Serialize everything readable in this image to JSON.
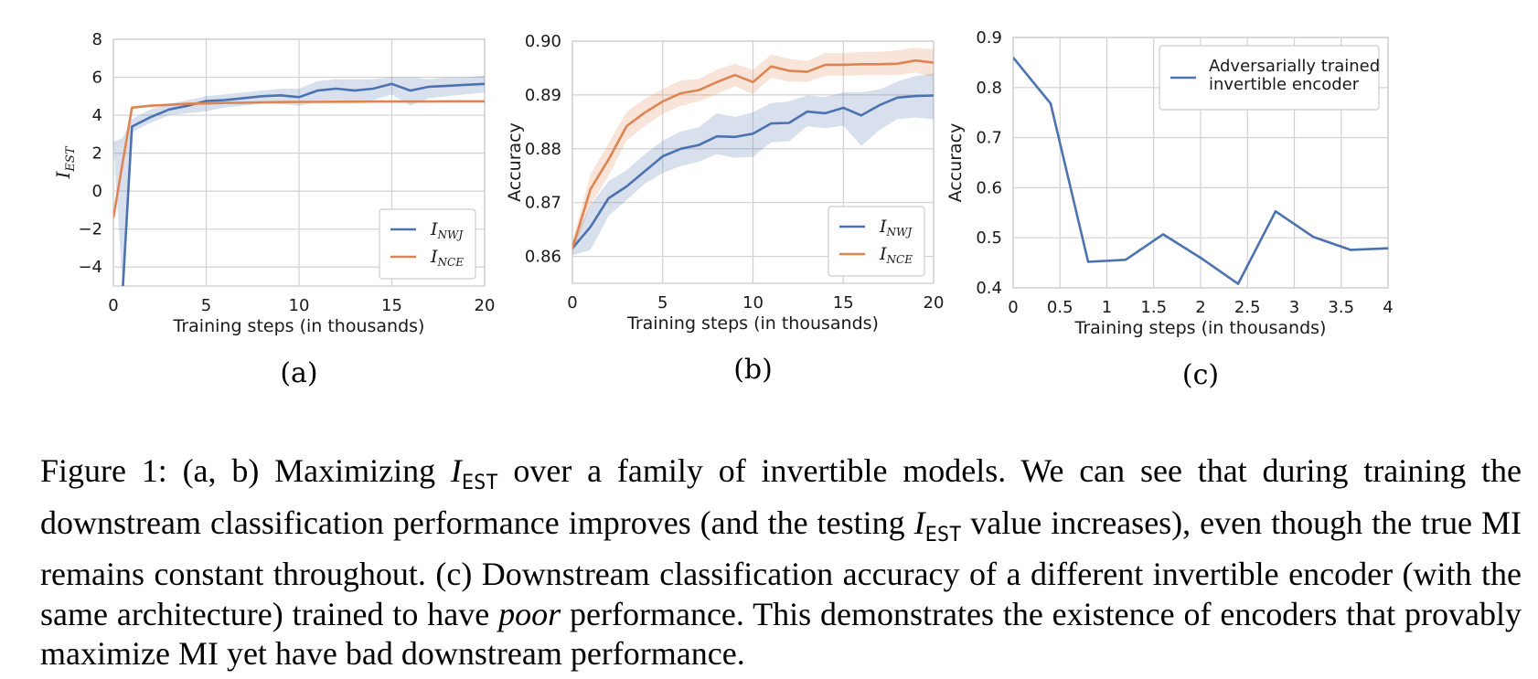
{
  "colors": {
    "nwj": "#4c72b0",
    "nce": "#dd8452",
    "grid": "#d2d2d2",
    "frame": "#cfcfcf"
  },
  "chart_data": [
    {
      "id": "a",
      "type": "line",
      "panel_label": "(a)",
      "xlabel": "Training steps (in thousands)",
      "ylabel_main": "I",
      "ylabel_sub": "EST",
      "xlim": [
        0,
        20
      ],
      "ylim": [
        -5,
        8
      ],
      "xticks": [
        0,
        5,
        10,
        15,
        20
      ],
      "yticks": [
        -4,
        -2,
        0,
        2,
        4,
        6,
        8
      ],
      "ytick_labels": [
        "−4",
        "−2",
        "0",
        "2",
        "4",
        "6",
        "8"
      ],
      "grid": true,
      "legend_position": "lower-right",
      "series": [
        {
          "name_main": "I",
          "name_sub": "NWJ",
          "color_key": "nwj",
          "x": [
            0,
            0.5,
            1,
            2,
            3,
            4,
            5,
            6,
            7,
            8,
            9,
            10,
            11,
            12,
            13,
            14,
            15,
            16,
            17,
            18,
            19,
            20
          ],
          "y": [
            null,
            -5.2,
            3.4,
            3.9,
            4.3,
            4.5,
            4.75,
            4.8,
            4.9,
            5.0,
            5.05,
            4.95,
            5.3,
            5.4,
            5.3,
            5.4,
            5.65,
            5.3,
            5.5,
            5.55,
            5.6,
            5.65
          ],
          "band_lo": [
            2.6,
            -5.2,
            3.1,
            3.6,
            4.0,
            4.1,
            4.2,
            4.4,
            4.5,
            4.6,
            4.6,
            4.5,
            4.7,
            4.8,
            4.7,
            4.8,
            5.1,
            4.5,
            4.9,
            5.0,
            5.1,
            5.2
          ],
          "band_hi": [
            2.6,
            2.8,
            3.8,
            4.3,
            4.6,
            4.8,
            5.0,
            5.1,
            5.2,
            5.3,
            5.4,
            5.4,
            5.8,
            5.9,
            5.9,
            5.9,
            6.0,
            6.0,
            5.9,
            6.0,
            6.0,
            6.1
          ]
        },
        {
          "name_main": "I",
          "name_sub": "NCE",
          "color_key": "nce",
          "x": [
            0,
            1,
            2,
            3,
            4,
            5,
            6,
            7,
            8,
            9,
            10,
            11,
            12,
            13,
            14,
            15,
            16,
            17,
            18,
            19,
            20
          ],
          "y": [
            -1.4,
            4.4,
            4.5,
            4.55,
            4.6,
            4.62,
            4.65,
            4.66,
            4.68,
            4.69,
            4.7,
            4.7,
            4.71,
            4.71,
            4.72,
            4.72,
            4.72,
            4.72,
            4.73,
            4.73,
            4.73
          ],
          "band_lo": null,
          "band_hi": null
        }
      ]
    },
    {
      "id": "b",
      "type": "line",
      "panel_label": "(b)",
      "xlabel": "Training steps (in thousands)",
      "ylabel": "Accuracy",
      "xlim": [
        0,
        20
      ],
      "ylim": [
        0.855,
        0.9
      ],
      "xticks": [
        0,
        5,
        10,
        15,
        20
      ],
      "yticks": [
        0.86,
        0.87,
        0.88,
        0.89,
        0.9
      ],
      "ytick_labels": [
        "0.86",
        "0.87",
        "0.88",
        "0.89",
        "0.90"
      ],
      "grid": true,
      "legend_position": "lower-right",
      "series": [
        {
          "name_main": "I",
          "name_sub": "NWJ",
          "color_key": "nwj",
          "x": [
            0,
            1,
            2,
            3,
            4,
            5,
            6,
            7,
            8,
            9,
            10,
            11,
            12,
            13,
            14,
            15,
            16,
            17,
            18,
            19,
            20
          ],
          "y": [
            0.8615,
            0.8655,
            0.8708,
            0.873,
            0.8758,
            0.8786,
            0.88,
            0.8807,
            0.8823,
            0.8822,
            0.8828,
            0.8847,
            0.8848,
            0.8869,
            0.8866,
            0.8876,
            0.8862,
            0.8881,
            0.8895,
            0.8898,
            0.8899
          ],
          "band_lo": [
            0.8602,
            0.8612,
            0.8675,
            0.8705,
            0.8735,
            0.8755,
            0.8768,
            0.8776,
            0.879,
            0.8783,
            0.8785,
            0.8812,
            0.8814,
            0.8842,
            0.8838,
            0.8843,
            0.8805,
            0.8835,
            0.8855,
            0.8858,
            0.8855
          ],
          "band_hi": [
            0.8628,
            0.8695,
            0.874,
            0.876,
            0.879,
            0.8815,
            0.8832,
            0.884,
            0.8866,
            0.8859,
            0.8868,
            0.8885,
            0.8888,
            0.8899,
            0.8896,
            0.8905,
            0.8905,
            0.891,
            0.8925,
            0.8935,
            0.894
          ]
        },
        {
          "name_main": "I",
          "name_sub": "NCE",
          "color_key": "nce",
          "x": [
            0,
            1,
            2,
            3,
            4,
            5,
            6,
            7,
            8,
            9,
            10,
            11,
            12,
            13,
            14,
            15,
            16,
            17,
            18,
            19,
            20
          ],
          "y": [
            0.8615,
            0.8725,
            0.878,
            0.8842,
            0.8867,
            0.8888,
            0.8903,
            0.8909,
            0.8924,
            0.8937,
            0.8924,
            0.8953,
            0.8945,
            0.8943,
            0.8956,
            0.8956,
            0.8957,
            0.8957,
            0.8958,
            0.8964,
            0.896
          ],
          "band_lo": [
            0.8603,
            0.8695,
            0.875,
            0.8815,
            0.8842,
            0.8865,
            0.888,
            0.8888,
            0.8902,
            0.8916,
            0.8902,
            0.8932,
            0.8925,
            0.8924,
            0.8936,
            0.8936,
            0.8937,
            0.8937,
            0.8937,
            0.8942,
            0.8933
          ],
          "band_hi": [
            0.8628,
            0.8752,
            0.881,
            0.8868,
            0.8893,
            0.8911,
            0.8927,
            0.893,
            0.8947,
            0.8958,
            0.8947,
            0.8975,
            0.8967,
            0.8963,
            0.8978,
            0.8978,
            0.898,
            0.898,
            0.8983,
            0.8988,
            0.8985
          ]
        }
      ]
    },
    {
      "id": "c",
      "type": "line",
      "panel_label": "(c)",
      "xlabel": "Training steps (in thousands)",
      "ylabel": "Accuracy",
      "xlim": [
        0,
        4
      ],
      "ylim": [
        0.4,
        0.9
      ],
      "xticks": [
        0,
        0.5,
        1,
        1.5,
        2,
        2.5,
        3,
        3.5,
        4
      ],
      "xtick_labels": [
        "0",
        "0.5",
        "1",
        "1.5",
        "2",
        "2.5",
        "3",
        "3.5",
        "4"
      ],
      "yticks": [
        0.4,
        0.5,
        0.6,
        0.7,
        0.8,
        0.9
      ],
      "ytick_labels": [
        "0.4",
        "0.5",
        "0.6",
        "0.7",
        "0.8",
        "0.9"
      ],
      "grid": true,
      "legend_position": "upper-right",
      "series": [
        {
          "name_lines": [
            "Adversarially trained",
            "invertible encoder"
          ],
          "color_key": "nwj",
          "x": [
            0,
            0.4,
            0.8,
            1.2,
            1.6,
            2.0,
            2.4,
            2.8,
            3.2,
            3.6,
            4.0
          ],
          "y": [
            0.86,
            0.768,
            0.452,
            0.456,
            0.507,
            0.46,
            0.408,
            0.553,
            0.502,
            0.476,
            0.479
          ],
          "band_lo": null,
          "band_hi": null
        }
      ]
    }
  ],
  "caption": {
    "label": "Figure 1:",
    "seg1": " (a, b) Maximizing ",
    "iest1_main": "I",
    "iest1_sub": "EST",
    "seg2": " over a family of invertible models. We can see that during training the downstream classification performance improves (and the testing ",
    "iest2_main": "I",
    "iest2_sub": "EST",
    "seg3": " value increases), even though the true MI remains constant throughout. (c) Downstream classification accuracy of a different invertible encoder (with the same architecture) trained to have ",
    "poor": "poor",
    "seg4": " performance. This demonstrates the existence of encoders that provably maximize MI yet have bad downstream performance."
  }
}
